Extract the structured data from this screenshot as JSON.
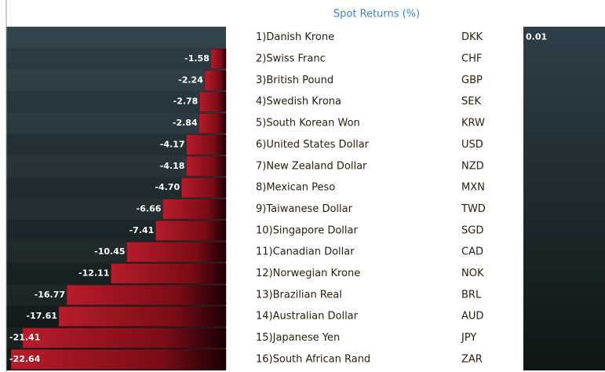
{
  "chart_data": {
    "type": "bar",
    "title": "Spot Returns (%)",
    "categories": [
      "1)Danish Krone",
      "2)Swiss Franc",
      "3)British Pound",
      "4)Swedish Krona",
      "5)South Korean Won",
      "6)United States Dollar",
      "7)New Zealand Dollar",
      "8)Mexican Peso",
      "9)Taiwanese Dollar",
      "10)Singapore Dollar",
      "11)Canadian Dollar",
      "12)Norwegian Krone",
      "13)Brazilian Real",
      "14)Australian Dollar",
      "15)Japanese Yen",
      "16)South African Rand"
    ],
    "codes": [
      "DKK",
      "CHF",
      "GBP",
      "SEK",
      "KRW",
      "USD",
      "NZD",
      "MXN",
      "TWD",
      "SGD",
      "CAD",
      "NOK",
      "BRL",
      "AUD",
      "JPY",
      "ZAR"
    ],
    "values": [
      0.01,
      -1.58,
      -2.24,
      -2.78,
      -2.84,
      -4.17,
      -4.18,
      -4.7,
      -6.66,
      -7.41,
      -10.45,
      -12.11,
      -16.77,
      -17.61,
      -21.41,
      -22.64
    ],
    "value_labels": [
      "0.01",
      "-1.58",
      "-2.24",
      "-2.78",
      "-2.84",
      "-4.17",
      "-4.18",
      "-4.70",
      "-6.66",
      "-7.41",
      "-10.45",
      "-12.11",
      "-16.77",
      "-17.61",
      "-21.41",
      "-22.64"
    ],
    "color": "#b01a28"
  }
}
